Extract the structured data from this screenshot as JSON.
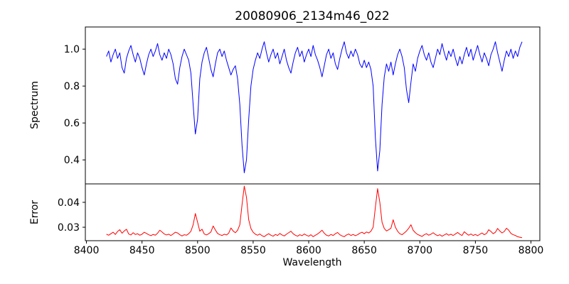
{
  "chart_data": {
    "type": "line",
    "title": "20080906_2134m46_022",
    "xlabel": "Wavelength",
    "grid": false,
    "legend": "none",
    "xlim": [
      8399,
      8808
    ],
    "xticks": [
      8400,
      8450,
      8500,
      8550,
      8600,
      8650,
      8700,
      8750,
      8800
    ],
    "xtick_labels": [
      "8400",
      "8450",
      "8500",
      "8550",
      "8600",
      "8650",
      "8700",
      "8750",
      "8800"
    ],
    "x_start": 8418,
    "x_step": 2,
    "n_points": 188,
    "axis_color": "#000000",
    "panels": [
      {
        "name": "spectrum",
        "ylabel": "Spectrum",
        "color": "#0000ff",
        "ylim": [
          0.27,
          1.12
        ],
        "yticks": [
          0.4,
          0.6,
          0.8,
          1.0
        ],
        "ytick_labels": [
          "0.4",
          "0.6",
          "0.8",
          "1.0"
        ],
        "values": [
          0.96,
          0.99,
          0.93,
          0.97,
          1.0,
          0.95,
          0.98,
          0.9,
          0.87,
          0.95,
          0.99,
          1.02,
          0.97,
          0.93,
          0.98,
          0.95,
          0.9,
          0.86,
          0.92,
          0.97,
          1.0,
          0.96,
          0.99,
          1.03,
          0.97,
          0.94,
          0.98,
          0.95,
          1.0,
          0.97,
          0.92,
          0.84,
          0.81,
          0.9,
          0.96,
          1.0,
          0.97,
          0.94,
          0.87,
          0.7,
          0.54,
          0.62,
          0.84,
          0.93,
          0.98,
          1.01,
          0.95,
          0.89,
          0.85,
          0.92,
          0.98,
          1.0,
          0.96,
          0.99,
          0.94,
          0.9,
          0.86,
          0.89,
          0.91,
          0.84,
          0.7,
          0.48,
          0.33,
          0.4,
          0.62,
          0.8,
          0.89,
          0.94,
          0.98,
          0.95,
          1.0,
          1.04,
          0.98,
          0.93,
          0.97,
          1.0,
          0.95,
          0.98,
          0.92,
          0.96,
          1.0,
          0.94,
          0.9,
          0.87,
          0.93,
          0.98,
          1.01,
          0.96,
          0.99,
          0.93,
          0.97,
          1.0,
          0.96,
          1.02,
          0.97,
          0.94,
          0.9,
          0.85,
          0.91,
          0.97,
          1.0,
          0.95,
          0.98,
          0.92,
          0.89,
          0.95,
          1.0,
          1.04,
          0.98,
          0.95,
          0.99,
          0.96,
          1.0,
          0.97,
          0.92,
          0.9,
          0.94,
          0.9,
          0.93,
          0.89,
          0.8,
          0.52,
          0.34,
          0.45,
          0.7,
          0.85,
          0.92,
          0.88,
          0.93,
          0.86,
          0.92,
          0.97,
          1.0,
          0.96,
          0.9,
          0.78,
          0.71,
          0.82,
          0.92,
          0.88,
          0.95,
          0.99,
          1.02,
          0.97,
          0.94,
          0.98,
          0.93,
          0.9,
          0.95,
          1.0,
          0.97,
          1.03,
          0.98,
          0.94,
          0.99,
          0.96,
          1.0,
          0.95,
          0.91,
          0.96,
          0.92,
          0.97,
          1.01,
          0.96,
          1.0,
          0.94,
          0.98,
          1.02,
          0.97,
          0.93,
          0.98,
          0.95,
          0.91,
          0.97,
          1.0,
          1.04,
          0.98,
          0.93,
          0.88,
          0.94,
          0.99,
          0.96,
          1.0,
          0.95,
          0.99,
          0.96,
          1.01,
          1.04
        ]
      },
      {
        "name": "error",
        "ylabel": "Error",
        "color": "#ff0000",
        "ylim": [
          0.0246,
          0.0474
        ],
        "yticks": [
          0.03,
          0.04
        ],
        "ytick_labels": [
          "0.03",
          "0.04"
        ],
        "values": [
          0.0272,
          0.0268,
          0.0274,
          0.028,
          0.0271,
          0.0283,
          0.029,
          0.0276,
          0.0285,
          0.0292,
          0.0273,
          0.0269,
          0.0278,
          0.0271,
          0.0274,
          0.0268,
          0.0272,
          0.028,
          0.0275,
          0.027,
          0.0266,
          0.0271,
          0.0268,
          0.0276,
          0.0288,
          0.0281,
          0.0273,
          0.0269,
          0.0272,
          0.0267,
          0.0273,
          0.028,
          0.0277,
          0.027,
          0.0265,
          0.027,
          0.0268,
          0.0274,
          0.0284,
          0.031,
          0.0355,
          0.032,
          0.0284,
          0.0292,
          0.0273,
          0.0269,
          0.0274,
          0.0281,
          0.0305,
          0.0289,
          0.0275,
          0.027,
          0.0267,
          0.0272,
          0.0269,
          0.0276,
          0.0297,
          0.0285,
          0.0278,
          0.0288,
          0.031,
          0.039,
          0.0465,
          0.042,
          0.033,
          0.0295,
          0.028,
          0.0272,
          0.0268,
          0.0273,
          0.0266,
          0.0262,
          0.0269,
          0.0274,
          0.0268,
          0.0264,
          0.0271,
          0.0267,
          0.0275,
          0.0269,
          0.0265,
          0.0272,
          0.0278,
          0.0284,
          0.0274,
          0.0268,
          0.0264,
          0.027,
          0.0266,
          0.0273,
          0.0268,
          0.0264,
          0.027,
          0.0262,
          0.0268,
          0.0273,
          0.028,
          0.0288,
          0.0276,
          0.0268,
          0.0265,
          0.0271,
          0.0267,
          0.0274,
          0.0279,
          0.027,
          0.0265,
          0.0262,
          0.0269,
          0.0273,
          0.0267,
          0.0271,
          0.0266,
          0.027,
          0.0276,
          0.028,
          0.0274,
          0.0281,
          0.0277,
          0.0284,
          0.03,
          0.038,
          0.0455,
          0.04,
          0.032,
          0.0295,
          0.0285,
          0.029,
          0.0296,
          0.033,
          0.03,
          0.0284,
          0.0274,
          0.027,
          0.0277,
          0.0285,
          0.0296,
          0.031,
          0.0288,
          0.0278,
          0.0271,
          0.0267,
          0.0263,
          0.027,
          0.0274,
          0.0268,
          0.0272,
          0.0278,
          0.0271,
          0.0266,
          0.027,
          0.0264,
          0.0269,
          0.0274,
          0.0268,
          0.0272,
          0.0267,
          0.0273,
          0.0279,
          0.0272,
          0.0267,
          0.0282,
          0.0274,
          0.0268,
          0.0273,
          0.0267,
          0.0271,
          0.0266,
          0.0272,
          0.0277,
          0.027,
          0.0275,
          0.029,
          0.0283,
          0.0274,
          0.028,
          0.0295,
          0.0285,
          0.0277,
          0.0283,
          0.0296,
          0.0288,
          0.0275,
          0.027,
          0.0267,
          0.0262,
          0.026,
          0.0258
        ]
      }
    ]
  }
}
